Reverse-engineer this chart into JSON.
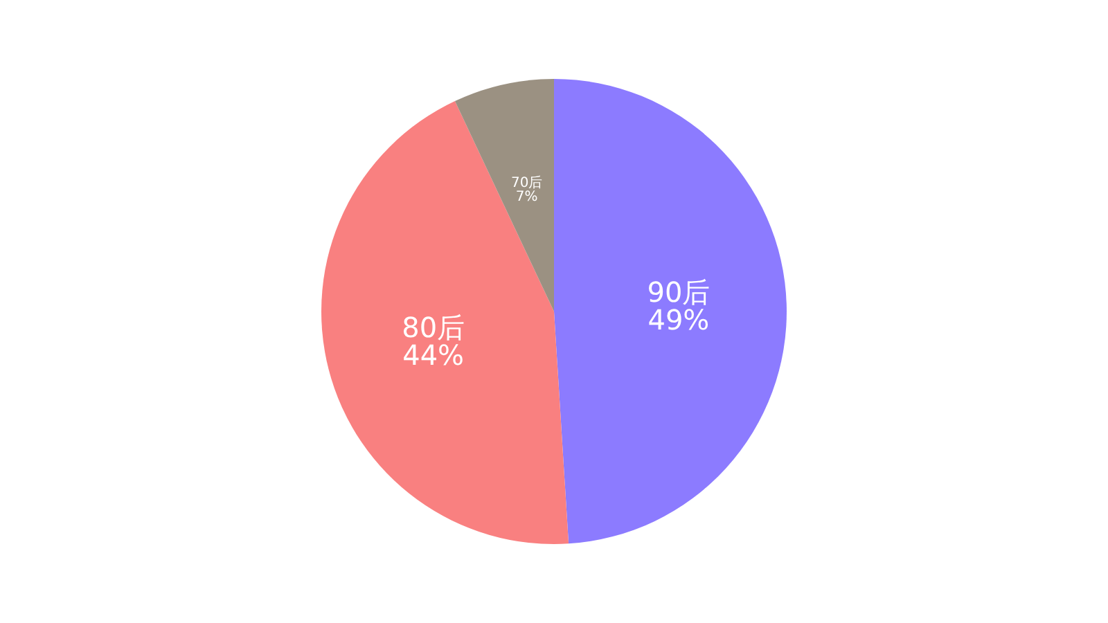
{
  "chart_data": {
    "type": "pie",
    "categories": [
      "90后",
      "80后",
      "70后"
    ],
    "values": [
      49,
      44,
      7
    ],
    "colors": [
      "#8c7bff",
      "#f98080",
      "#9b9182"
    ],
    "value_labels": [
      "49%",
      "44%",
      "7%"
    ]
  }
}
